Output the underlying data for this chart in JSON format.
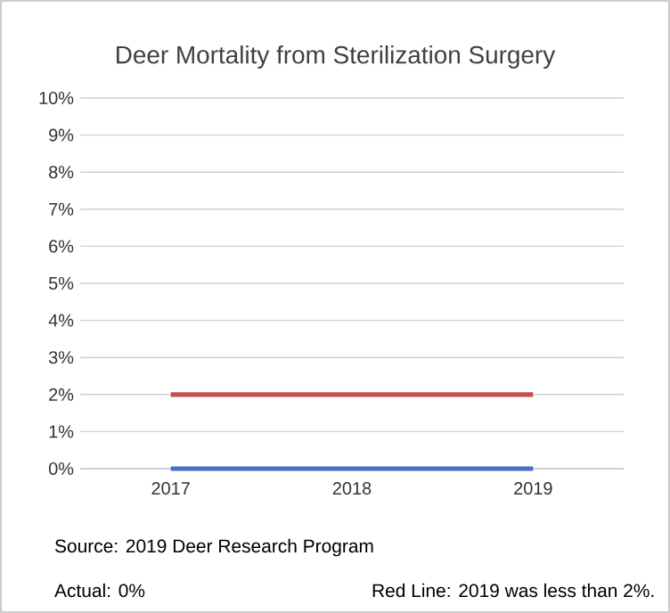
{
  "chart_data": {
    "type": "line",
    "title": "Deer Mortality from Sterilization Surgery",
    "categories": [
      "2017",
      "2018",
      "2019"
    ],
    "series": [
      {
        "color": "#c0504d",
        "values": [
          2,
          2,
          2
        ]
      },
      {
        "color": "#4472c4",
        "values": [
          0,
          0,
          0
        ]
      }
    ],
    "ylim": [
      0,
      10
    ],
    "yticks": [
      {
        "value": 0,
        "label": "0%"
      },
      {
        "value": 1,
        "label": "1%"
      },
      {
        "value": 2,
        "label": "2%"
      },
      {
        "value": 3,
        "label": "3%"
      },
      {
        "value": 4,
        "label": "4%"
      },
      {
        "value": 5,
        "label": "5%"
      },
      {
        "value": 6,
        "label": "6%"
      },
      {
        "value": 7,
        "label": "7%"
      },
      {
        "value": 8,
        "label": "8%"
      },
      {
        "value": 9,
        "label": "9%"
      },
      {
        "value": 10,
        "label": "10%"
      }
    ],
    "grid": "y",
    "marker": "none",
    "line_style": "solid",
    "annotations": [
      "Source:  2019 Deer Research Program",
      "Actual:  0%",
      "Red Line:   2019 was less than 2%."
    ]
  }
}
